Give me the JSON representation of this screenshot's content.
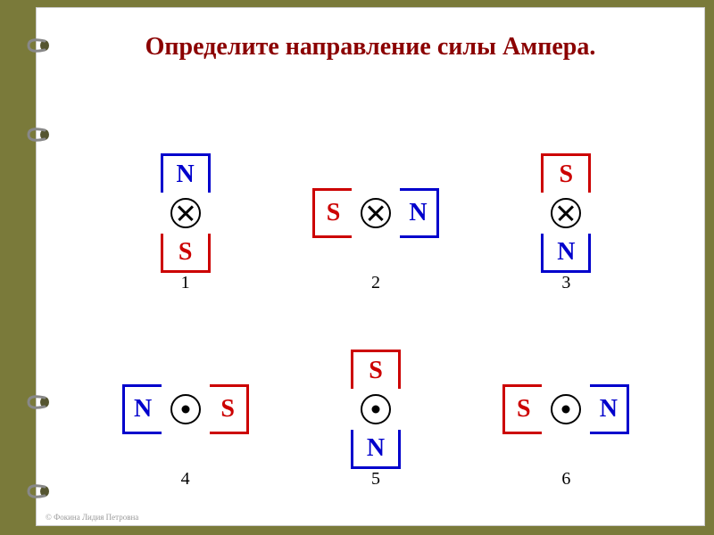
{
  "title": "Определите направление силы Ампера.",
  "copyright": "© Фокина Лидия Петровна",
  "colors": {
    "title": "#8b0000",
    "N": "#0000cc",
    "S": "#cc0000",
    "number": "#000000",
    "background_outer": "#7a7a3a",
    "background_inner": "#ffffff",
    "binding_ring": "#888888",
    "binding_hole": "#555530"
  },
  "bindings_y": [
    40,
    140,
    440,
    540
  ],
  "diagrams": [
    {
      "id": 1,
      "orientation": "vertical",
      "top": "N",
      "bottom": "S",
      "current": "into"
    },
    {
      "id": 2,
      "orientation": "horizontal",
      "left": "S",
      "right": "N",
      "current": "into"
    },
    {
      "id": 3,
      "orientation": "vertical",
      "top": "S",
      "bottom": "N",
      "current": "into"
    },
    {
      "id": 4,
      "orientation": "horizontal",
      "left": "N",
      "right": "S",
      "current": "out"
    },
    {
      "id": 5,
      "orientation": "vertical",
      "top": "S",
      "bottom": "N",
      "current": "out"
    },
    {
      "id": 6,
      "orientation": "horizontal",
      "left": "S",
      "right": "N",
      "current": "out"
    }
  ]
}
